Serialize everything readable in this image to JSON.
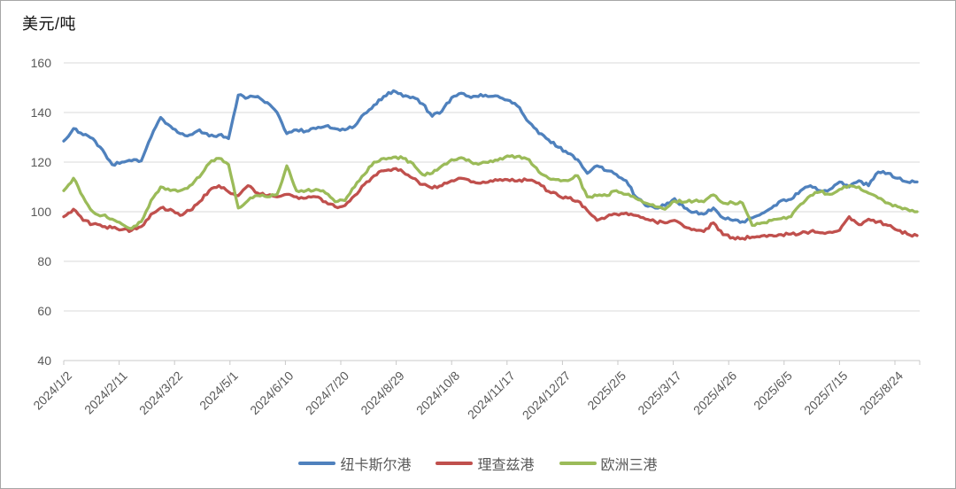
{
  "title": "美元/吨",
  "axis": {
    "label_color": "#595959",
    "grid_color": "#D9D9D9",
    "axis_line_color": "#C9C9C9"
  },
  "chart_data": {
    "type": "line",
    "title": "美元/吨",
    "xlabel": "",
    "ylabel": "美元/吨",
    "ylim": [
      40,
      160
    ],
    "y_ticks": [
      40,
      60,
      80,
      100,
      120,
      140,
      160
    ],
    "grid": true,
    "legend_position": "bottom",
    "x_label_rotation": 45,
    "x_tick_labels": [
      "2024/1/2",
      "2024/2/11",
      "2024/3/22",
      "2024/5/1",
      "2024/6/10",
      "2024/7/20",
      "2024/8/29",
      "2024/10/8",
      "2024/11/17",
      "2024/12/27",
      "2025/2/5",
      "2025/3/17",
      "2025/4/26",
      "2025/6/5",
      "2025/7/15",
      "2025/8/24"
    ],
    "x_dates": [
      "2024/1/2",
      "2024/1/9",
      "2024/1/16",
      "2024/1/23",
      "2024/1/30",
      "2024/2/6",
      "2024/2/13",
      "2024/2/20",
      "2024/2/27",
      "2024/3/5",
      "2024/3/12",
      "2024/3/19",
      "2024/3/26",
      "2024/4/2",
      "2024/4/9",
      "2024/4/16",
      "2024/4/23",
      "2024/4/30",
      "2024/5/7",
      "2024/5/14",
      "2024/5/21",
      "2024/5/28",
      "2024/6/4",
      "2024/6/11",
      "2024/6/18",
      "2024/6/25",
      "2024/7/2",
      "2024/7/9",
      "2024/7/16",
      "2024/7/23",
      "2024/7/30",
      "2024/8/6",
      "2024/8/13",
      "2024/8/20",
      "2024/8/27",
      "2024/9/3",
      "2024/9/10",
      "2024/9/17",
      "2024/9/24",
      "2024/10/1",
      "2024/10/8",
      "2024/10/15",
      "2024/10/22",
      "2024/10/29",
      "2024/11/5",
      "2024/11/12",
      "2024/11/19",
      "2024/11/26",
      "2024/12/3",
      "2024/12/10",
      "2024/12/17",
      "2024/12/24",
      "2024/12/31",
      "2025/1/7",
      "2025/1/14",
      "2025/1/21",
      "2025/1/28",
      "2025/2/4",
      "2025/2/11",
      "2025/2/18",
      "2025/2/25",
      "2025/3/4",
      "2025/3/11",
      "2025/3/18",
      "2025/3/25",
      "2025/4/1",
      "2025/4/8",
      "2025/4/15",
      "2025/4/22",
      "2025/4/29",
      "2025/5/6",
      "2025/5/13",
      "2025/5/20",
      "2025/5/27",
      "2025/6/3",
      "2025/6/10",
      "2025/6/17",
      "2025/6/24",
      "2025/7/1",
      "2025/7/8",
      "2025/7/15",
      "2025/7/22",
      "2025/7/29",
      "2025/8/5",
      "2025/8/12",
      "2025/8/19",
      "2025/8/26",
      "2025/9/2",
      "2025/9/9"
    ],
    "series": [
      {
        "key": "newcastle",
        "name": "纽卡斯尔港",
        "color": "#4F81BD",
        "values": [
          128.5,
          133.5,
          131,
          129.5,
          125,
          119,
          120,
          120.5,
          120.5,
          130,
          138,
          134.5,
          131.5,
          131,
          133,
          130.5,
          131,
          129.5,
          147,
          146,
          146.5,
          144,
          140,
          131.5,
          133,
          132.5,
          133.5,
          134.5,
          133.5,
          133,
          134.5,
          139.5,
          143,
          146.5,
          148.8,
          146.5,
          146.2,
          143.5,
          138.5,
          140.5,
          146,
          147.8,
          146,
          147.3,
          146.5,
          146,
          144.8,
          142,
          136,
          131.5,
          129,
          126,
          123.5,
          121,
          115.5,
          118.5,
          116.5,
          115,
          112.5,
          106,
          102.5,
          101.5,
          102.5,
          105.3,
          101.5,
          99.8,
          99,
          101.5,
          97.5,
          96.5,
          96,
          97.5,
          99.3,
          101.5,
          104.5,
          105,
          108.5,
          110.5,
          108.5,
          109,
          112,
          110,
          112.5,
          110.5,
          116,
          115.5,
          113.5,
          112,
          112
        ]
      },
      {
        "key": "richards-bay",
        "name": "理查兹港",
        "color": "#C0504D",
        "values": [
          98,
          101,
          96.5,
          95,
          94,
          93.5,
          92.8,
          92.5,
          94,
          99,
          101.5,
          101,
          98.5,
          100.5,
          104,
          108.5,
          110.5,
          108,
          106.5,
          110.5,
          107.5,
          106.5,
          106,
          107,
          106,
          105.5,
          106,
          104,
          102,
          102.5,
          106.5,
          111,
          114.5,
          116.5,
          117.3,
          116,
          113.5,
          111,
          109.5,
          110.5,
          112.5,
          113.5,
          112,
          111.5,
          112.5,
          113,
          112.5,
          112.8,
          112.7,
          111.5,
          108.2,
          106.5,
          105.5,
          104.3,
          100.5,
          96.5,
          98,
          99,
          99.5,
          98.5,
          97,
          96,
          95.5,
          96.5,
          93.9,
          92.9,
          92,
          95.5,
          90.7,
          89.6,
          89.3,
          89.8,
          90.3,
          90.5,
          90.8,
          91,
          91.3,
          92,
          91.5,
          91.8,
          92.5,
          98,
          94.8,
          97,
          96,
          94.5,
          92.5,
          91,
          90.4
        ]
      },
      {
        "key": "europe-three-ports",
        "name": "欧洲三港",
        "color": "#9BBB59",
        "values": [
          108.5,
          113.5,
          106,
          100,
          98.5,
          97,
          95,
          93.2,
          96,
          104.5,
          110,
          108.5,
          108.5,
          110.5,
          114,
          119.5,
          121.5,
          119,
          101.5,
          104.5,
          106.5,
          106,
          107,
          118.5,
          108.5,
          108.5,
          109,
          107.5,
          104,
          104.5,
          110,
          115,
          120,
          121.5,
          122,
          121.5,
          119.5,
          115,
          115.5,
          118.5,
          121,
          121.8,
          120,
          119.5,
          120.5,
          121.5,
          122.3,
          122.4,
          121,
          116,
          113.5,
          113,
          112.5,
          114.5,
          106,
          106.5,
          106.5,
          108.5,
          107,
          105.4,
          103.5,
          102,
          101,
          104.3,
          103.9,
          104.3,
          104,
          106.8,
          103.5,
          103.6,
          103.5,
          94.5,
          95.5,
          96.5,
          97.2,
          98,
          103,
          106.5,
          108,
          107,
          109,
          110.5,
          110,
          107.5,
          105.5,
          103.5,
          102,
          101,
          100
        ]
      }
    ]
  }
}
